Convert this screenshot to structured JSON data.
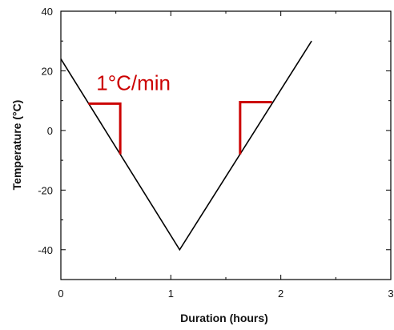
{
  "chart_data": {
    "type": "line",
    "xlabel": "Duration (hours)",
    "ylabel": "Temperature (°C)",
    "xlim": [
      0,
      3
    ],
    "ylim": [
      -50,
      40
    ],
    "x_ticks": [
      0,
      1,
      2,
      3
    ],
    "y_ticks": [
      -40,
      -20,
      0,
      20,
      40
    ],
    "y_minor_step": 10,
    "x_minor_step": 0.5,
    "grid": false,
    "series": [
      {
        "x": [
          0,
          1.08,
          2.28
        ],
        "y": [
          24,
          -40,
          30
        ],
        "color": "#000000"
      }
    ],
    "annotations": [
      {
        "text": "1°C/min",
        "x": 0.66,
        "y": 13.5,
        "color": "#cc0000"
      }
    ],
    "slope_markers": [
      {
        "color": "#cc0000",
        "points": [
          [
            0.25,
            9
          ],
          [
            0.54,
            9
          ],
          [
            0.54,
            -8
          ]
        ]
      },
      {
        "color": "#cc0000",
        "points": [
          [
            1.63,
            -8
          ],
          [
            1.63,
            9.5
          ],
          [
            1.92,
            9.5
          ]
        ]
      }
    ]
  }
}
